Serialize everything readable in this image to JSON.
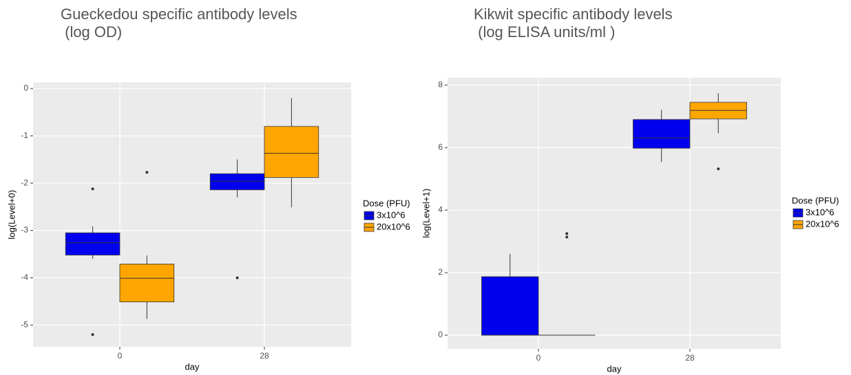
{
  "chart_data": [
    {
      "type": "box",
      "title": [
        "Gueckedou specific antibody levels",
        " (log OD)"
      ],
      "x_label": "day",
      "y_label": "log(Level+0)",
      "categories": [
        "0",
        "28"
      ],
      "legend_title": "Dose (PFU)",
      "series": [
        {
          "name": "3x10^6",
          "color": "#0000ee",
          "boxes": [
            {
              "min": -3.6,
              "q1": -3.52,
              "median": -3.26,
              "q3": -3.05,
              "max": -2.91,
              "outliers": [
                -2.12,
                -5.2
              ]
            },
            {
              "min": -2.3,
              "q1": -2.14,
              "median": -1.96,
              "q3": -1.8,
              "max": -1.5,
              "outliers": [
                -4.0
              ]
            }
          ]
        },
        {
          "name": "20x10^6",
          "color": "#ffa500",
          "boxes": [
            {
              "min": -4.87,
              "q1": -4.51,
              "median": -4.01,
              "q3": -3.71,
              "max": -3.53,
              "outliers": [
                -1.77
              ]
            },
            {
              "min": -2.51,
              "q1": -1.88,
              "median": -1.37,
              "q3": -0.8,
              "max": -0.2,
              "outliers": []
            }
          ]
        }
      ],
      "ylim": [
        -5.46,
        0.13
      ],
      "yticks": [
        0,
        -1,
        -2,
        -3,
        -4,
        -5
      ],
      "grid": true
    },
    {
      "type": "box",
      "title": [
        "Kikwit specific antibody levels",
        " (log ELISA units/ml )"
      ],
      "x_label": "day",
      "y_label": "log(Level+1)",
      "categories": [
        "0",
        "28"
      ],
      "legend_title": "Dose (PFU)",
      "series": [
        {
          "name": "3x10^6",
          "color": "#0000ee",
          "boxes": [
            {
              "min": 0,
              "q1": 0,
              "median": 0,
              "q3": 1.87,
              "max": 2.6,
              "outliers": []
            },
            {
              "min": 5.54,
              "q1": 5.98,
              "median": 6.31,
              "q3": 6.9,
              "max": 7.21,
              "outliers": []
            }
          ]
        },
        {
          "name": "20x10^6",
          "color": "#ffa500",
          "boxes": [
            {
              "min": 0,
              "q1": 0,
              "median": 0,
              "q3": 0,
              "max": 0,
              "outliers": [
                3.25,
                3.14
              ]
            },
            {
              "min": 6.46,
              "q1": 6.92,
              "median": 7.19,
              "q3": 7.45,
              "max": 7.74,
              "outliers": [
                5.32
              ]
            }
          ]
        }
      ],
      "ylim": [
        -0.44,
        8.24
      ],
      "yticks": [
        0,
        2,
        4,
        6,
        8
      ],
      "grid": true
    }
  ]
}
